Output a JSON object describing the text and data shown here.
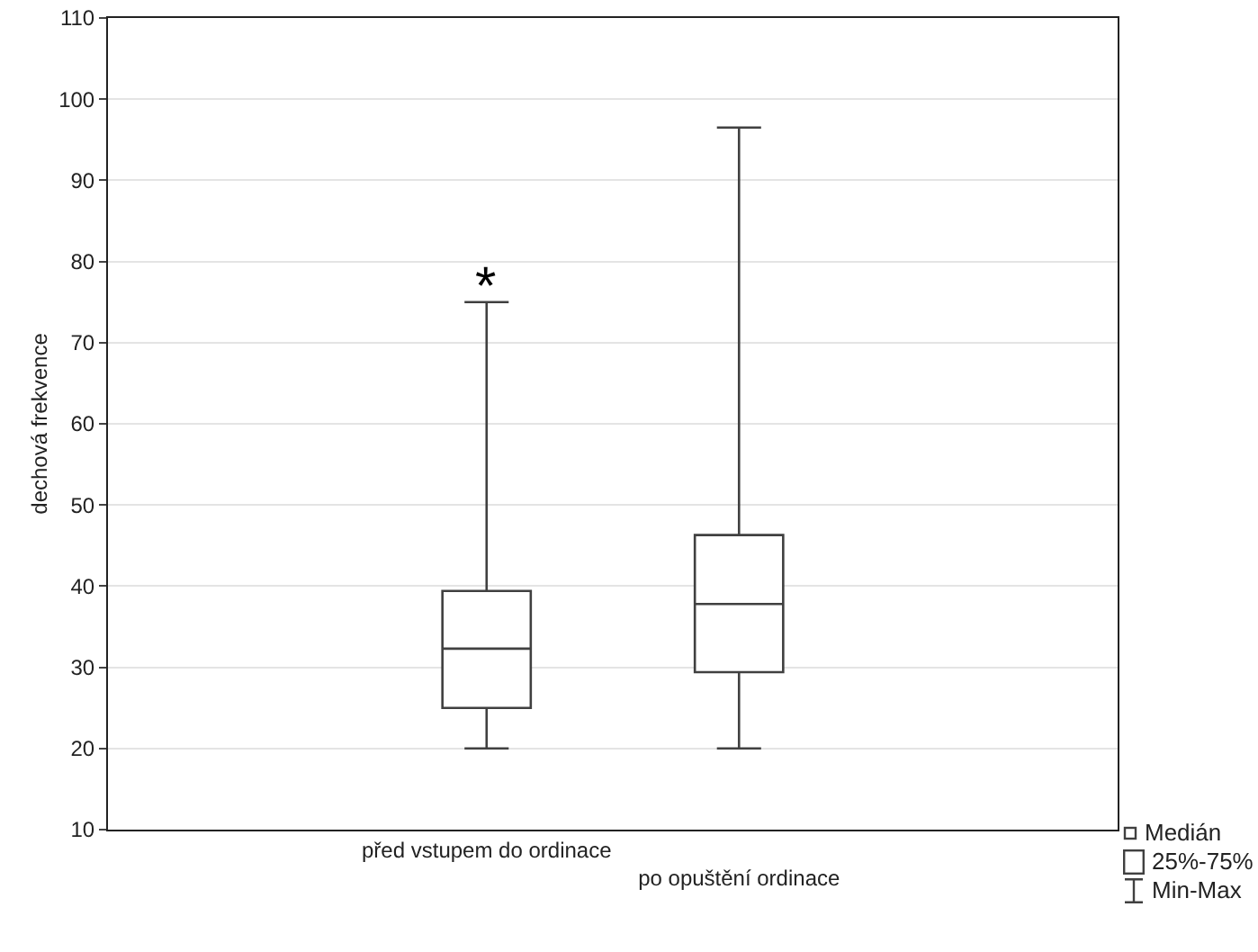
{
  "chart_data": {
    "type": "box",
    "ylabel": "dechová frekvence",
    "categories": [
      "před vstupem do ordinace",
      "po opuštění ordinace"
    ],
    "boxes": [
      {
        "low": 20,
        "q1": 25,
        "median": 32.3,
        "q3": 39.4,
        "high": 75
      },
      {
        "low": 20,
        "q1": 29.4,
        "median": 37.8,
        "q3": 46.3,
        "high": 96.5
      }
    ],
    "color": "#404040",
    "ylim": [
      10,
      110
    ],
    "yticks": [
      10,
      20,
      30,
      40,
      50,
      60,
      70,
      80,
      90,
      100,
      110
    ],
    "grid": "y",
    "annotations": [
      "*",
      "Medián",
      "25%-75%",
      "Min-Max"
    ]
  }
}
